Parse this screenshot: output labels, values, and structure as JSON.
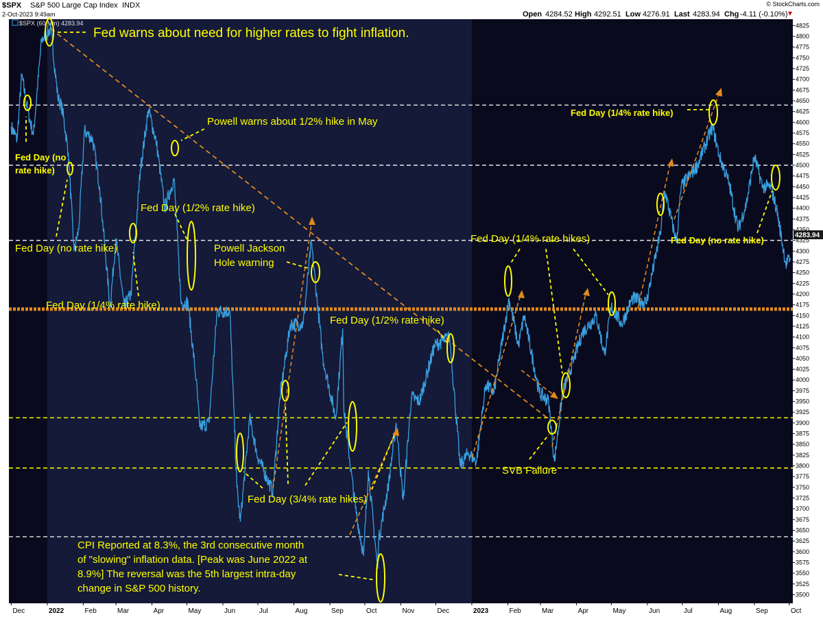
{
  "header": {
    "symbol": "$SPX",
    "name": "S&P 500 Large Cap Index",
    "exchange": "INDX",
    "watermark": "© StockCharts.com",
    "date": "2-Oct-2023 9:49am",
    "open_label": "Open",
    "open": "4284.52",
    "high_label": "High",
    "high": "4292.51",
    "low_label": "Low",
    "low": "4276.91",
    "last_label": "Last",
    "last": "4283.94",
    "chg_label": "Chg",
    "chg": "-4.11 (-0.10%)",
    "legend": "$SPX (60 Min) 4283.94",
    "price_badge": "4283.94"
  },
  "colors": {
    "background": "#0a0a1e",
    "shade": "#141a38",
    "price": "#3aa0e0",
    "annotation": "#ffff00",
    "trendline": "#e08a1e",
    "white_line": "#e8e8e8",
    "yellow_line": "#f5f500"
  },
  "chart_data": {
    "type": "line",
    "title": "$SPX S&P 500 Large Cap Index INDX",
    "series": [
      {
        "name": "$SPX (60 Min)",
        "points": [
          [
            "2021-12-01",
            4590
          ],
          [
            "2021-12-06",
            4560
          ],
          [
            "2021-12-10",
            4710
          ],
          [
            "2021-12-15",
            4630
          ],
          [
            "2021-12-20",
            4570
          ],
          [
            "2021-12-27",
            4790
          ],
          [
            "2022-01-04",
            4818
          ],
          [
            "2022-01-10",
            4660
          ],
          [
            "2022-01-14",
            4630
          ],
          [
            "2022-01-19",
            4530
          ],
          [
            "2022-01-24",
            4300
          ],
          [
            "2022-01-28",
            4350
          ],
          [
            "2022-02-02",
            4580
          ],
          [
            "2022-02-09",
            4560
          ],
          [
            "2022-02-15",
            4450
          ],
          [
            "2022-02-24",
            4170
          ],
          [
            "2022-03-01",
            4330
          ],
          [
            "2022-03-08",
            4170
          ],
          [
            "2022-03-14",
            4200
          ],
          [
            "2022-03-22",
            4490
          ],
          [
            "2022-03-29",
            4630
          ],
          [
            "2022-04-05",
            4550
          ],
          [
            "2022-04-12",
            4400
          ],
          [
            "2022-04-20",
            4470
          ],
          [
            "2022-04-26",
            4180
          ],
          [
            "2022-05-02",
            4180
          ],
          [
            "2022-05-09",
            4000
          ],
          [
            "2022-05-12",
            3890
          ],
          [
            "2022-05-20",
            3900
          ],
          [
            "2022-05-27",
            4160
          ],
          [
            "2022-06-07",
            4160
          ],
          [
            "2022-06-13",
            3750
          ],
          [
            "2022-06-16",
            3670
          ],
          [
            "2022-06-24",
            3910
          ],
          [
            "2022-07-01",
            3820
          ],
          [
            "2022-07-14",
            3740
          ],
          [
            "2022-07-20",
            3960
          ],
          [
            "2022-07-29",
            4130
          ],
          [
            "2022-08-09",
            4130
          ],
          [
            "2022-08-16",
            4320
          ],
          [
            "2022-08-26",
            4050
          ],
          [
            "2022-09-06",
            3910
          ],
          [
            "2022-09-12",
            4120
          ],
          [
            "2022-09-13",
            3930
          ],
          [
            "2022-09-23",
            3700
          ],
          [
            "2022-09-30",
            3590
          ],
          [
            "2022-10-04",
            3790
          ],
          [
            "2022-10-12",
            3560
          ],
          [
            "2022-10-13",
            3630
          ],
          [
            "2022-10-21",
            3750
          ],
          [
            "2022-10-28",
            3900
          ],
          [
            "2022-11-03",
            3720
          ],
          [
            "2022-11-10",
            3960
          ],
          [
            "2022-11-17",
            3950
          ],
          [
            "2022-11-30",
            4080
          ],
          [
            "2022-12-13",
            4100
          ],
          [
            "2022-12-22",
            3800
          ],
          [
            "2022-12-29",
            3830
          ],
          [
            "2023-01-05",
            3810
          ],
          [
            "2023-01-13",
            3990
          ],
          [
            "2023-01-20",
            3970
          ],
          [
            "2023-02-02",
            4190
          ],
          [
            "2023-02-10",
            4080
          ],
          [
            "2023-02-15",
            4150
          ],
          [
            "2023-02-28",
            3970
          ],
          [
            "2023-03-08",
            3950
          ],
          [
            "2023-03-13",
            3810
          ],
          [
            "2023-03-20",
            3970
          ],
          [
            "2023-03-30",
            4050
          ],
          [
            "2023-04-06",
            4110
          ],
          [
            "2023-04-18",
            4150
          ],
          [
            "2023-04-25",
            4060
          ],
          [
            "2023-05-01",
            4170
          ],
          [
            "2023-05-10",
            4130
          ],
          [
            "2023-05-19",
            4190
          ],
          [
            "2023-05-31",
            4180
          ],
          [
            "2023-06-12",
            4340
          ],
          [
            "2023-06-16",
            4440
          ],
          [
            "2023-06-26",
            4320
          ],
          [
            "2023-06-30",
            4450
          ],
          [
            "2023-07-14",
            4500
          ],
          [
            "2023-07-27",
            4590
          ],
          [
            "2023-08-02",
            4520
          ],
          [
            "2023-08-10",
            4460
          ],
          [
            "2023-08-18",
            4350
          ],
          [
            "2023-08-25",
            4410
          ],
          [
            "2023-09-01",
            4520
          ],
          [
            "2023-09-08",
            4450
          ],
          [
            "2023-09-15",
            4450
          ],
          [
            "2023-09-20",
            4400
          ],
          [
            "2023-09-28",
            4270
          ],
          [
            "2023-10-02",
            4284
          ]
        ]
      }
    ],
    "ylim": [
      3480,
      4840
    ],
    "yticks": [
      3500,
      3525,
      3550,
      3575,
      3600,
      3625,
      3650,
      3675,
      3700,
      3725,
      3750,
      3775,
      3800,
      3825,
      3850,
      3875,
      3900,
      3925,
      3950,
      3975,
      4000,
      4025,
      4050,
      4075,
      4100,
      4125,
      4150,
      4175,
      4200,
      4225,
      4250,
      4275,
      4300,
      4325,
      4350,
      4375,
      4400,
      4425,
      4450,
      4475,
      4500,
      4525,
      4550,
      4575,
      4600,
      4625,
      4650,
      4675,
      4700,
      4725,
      4750,
      4775,
      4800,
      4825
    ],
    "x_range": [
      "2021-11-29",
      "2023-10-04"
    ],
    "x_ticks": [
      {
        "date": "2021-12-01",
        "label": "Dec"
      },
      {
        "date": "2022-01-01",
        "label": "2022",
        "bold": true
      },
      {
        "date": "2022-02-01",
        "label": "Feb"
      },
      {
        "date": "2022-03-01",
        "label": "Mar"
      },
      {
        "date": "2022-04-01",
        "label": "Apr"
      },
      {
        "date": "2022-05-01",
        "label": "May"
      },
      {
        "date": "2022-06-01",
        "label": "Jun"
      },
      {
        "date": "2022-07-01",
        "label": "Jul"
      },
      {
        "date": "2022-08-01",
        "label": "Aug"
      },
      {
        "date": "2022-09-01",
        "label": "Sep"
      },
      {
        "date": "2022-10-01",
        "label": "Oct"
      },
      {
        "date": "2022-11-01",
        "label": "Nov"
      },
      {
        "date": "2022-12-01",
        "label": "Dec"
      },
      {
        "date": "2023-01-01",
        "label": "2023",
        "bold": true
      },
      {
        "date": "2023-02-01",
        "label": "Feb"
      },
      {
        "date": "2023-03-01",
        "label": "Mar"
      },
      {
        "date": "2023-04-01",
        "label": "Apr"
      },
      {
        "date": "2023-05-01",
        "label": "May"
      },
      {
        "date": "2023-06-01",
        "label": "Jun"
      },
      {
        "date": "2023-07-01",
        "label": "Jul"
      },
      {
        "date": "2023-08-01",
        "label": "Aug"
      },
      {
        "date": "2023-09-01",
        "label": "Sep"
      },
      {
        "date": "2023-10-01",
        "label": "Oct"
      }
    ],
    "horizontal_lines": [
      {
        "y": 4640,
        "style": "white-dashed"
      },
      {
        "y": 4500,
        "style": "white-dashed"
      },
      {
        "y": 4325,
        "style": "white-dashed"
      },
      {
        "y": 4165,
        "style": "orange-thick-dashed"
      },
      {
        "y": 3912,
        "style": "yellow-dashed"
      },
      {
        "y": 3795,
        "style": "yellow-dashed"
      },
      {
        "y": 3635,
        "style": "white-dashed"
      }
    ],
    "trendlines": [
      {
        "from": [
          "2022-01-04",
          4818
        ],
        "to": [
          "2023-03-10",
          3905
        ],
        "style": "orange-dashed"
      }
    ],
    "shaded_region": [
      "2022-01-01",
      "2023-01-01"
    ],
    "grid": false,
    "legend_position": "top-left"
  },
  "annotations": {
    "fed_warns": "Fed warns about need for higher rates to fight inflation.",
    "powell_may": "Powell warns about 1/2% hike in May",
    "fed_no_hike_1a": "Fed Day (no",
    "fed_no_hike_1b": "rate hike)",
    "fed_half_1": "Fed Day (1/2% rate hike)",
    "fed_no_hike_2": "Fed Day (no rate hike)",
    "fed_quarter_1": "Fed Day (1/4% rate hike)",
    "powell_jh_a": "Powell Jackson",
    "powell_jh_b": "Hole warning",
    "fed_half_2": "Fed Day (1/2% rate hike)",
    "fed_three_quarter": "Fed Day (3/4% rate hikes)",
    "cpi_1": "CPI Reported at 8.3%, the 3rd consecutive month",
    "cpi_2": "of \"slowing\" inflation data. [Peak was June 2022 at",
    "cpi_3": "8.9%] The reversal was the 5th largest intra-day",
    "cpi_4": "change in S&P 500 history.",
    "fed_quarter_hikes": "Fed Day (1/4% rate hikes)",
    "svb": "SVB Failure",
    "fed_quarter_2": "Fed Day (1/4% rate hike)",
    "fed_no_hike_3": "Fed Day (no rate hike)"
  }
}
